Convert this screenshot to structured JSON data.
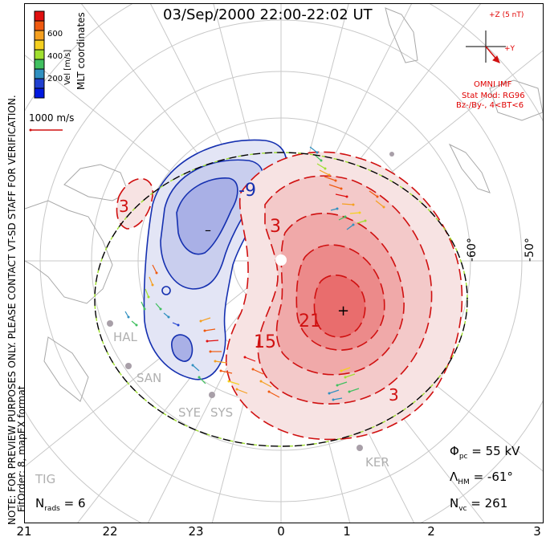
{
  "title": "03/Sep/2000 22:00-22:02 UT",
  "colorbar": {
    "label": "Vel [m/s]",
    "ticks": [
      "600",
      "400",
      "200"
    ],
    "colors": [
      "#e01010",
      "#f05a10",
      "#f5a020",
      "#f5d020",
      "#a0e030",
      "#40c060",
      "#3090c0",
      "#2040d0",
      "#0018e0"
    ]
  },
  "coord_label": "MLT coordinates",
  "vector_scale": "1000 m/s",
  "imf": {
    "z_label": "+Z (5 nT)",
    "y_label": "+Y",
    "source": "OMNI IMF",
    "stat_mod": "Stat Mod: RG96",
    "condition": "Bz-/By-, 4<BT<6"
  },
  "notes": {
    "preview": "NOTE: FOR PREVIEW PURPOSES ONLY. PLEASE CONTACT VT-SD STAFF FOR VERIFICATION.",
    "fit": "FitOrder: 8, mapEX format"
  },
  "lat_labels": [
    "-60°",
    "-50°"
  ],
  "contour_labels": {
    "neg": [
      "-9",
      "3"
    ],
    "pos": [
      "3",
      "21",
      "15",
      "3"
    ],
    "minus": "–",
    "plus": "+"
  },
  "stations": [
    "HAL",
    "SAN",
    "SYE",
    "SYS",
    "KER",
    "TIG"
  ],
  "stats": {
    "phi_label": "Φ",
    "phi_sub": "pc",
    "phi_value": "= 55 kV",
    "lambda_label": "Λ",
    "lambda_sub": "HM",
    "lambda_value": "= -61°",
    "nvc_label": "N",
    "nvc_sub": "vc",
    "nvc_value": "= 261",
    "nrads_label": "N",
    "nrads_sub": "rads",
    "nrads_value": "= 6"
  },
  "mlt_ticks": [
    "21",
    "22",
    "23",
    "0",
    "1",
    "2",
    "3"
  ]
}
